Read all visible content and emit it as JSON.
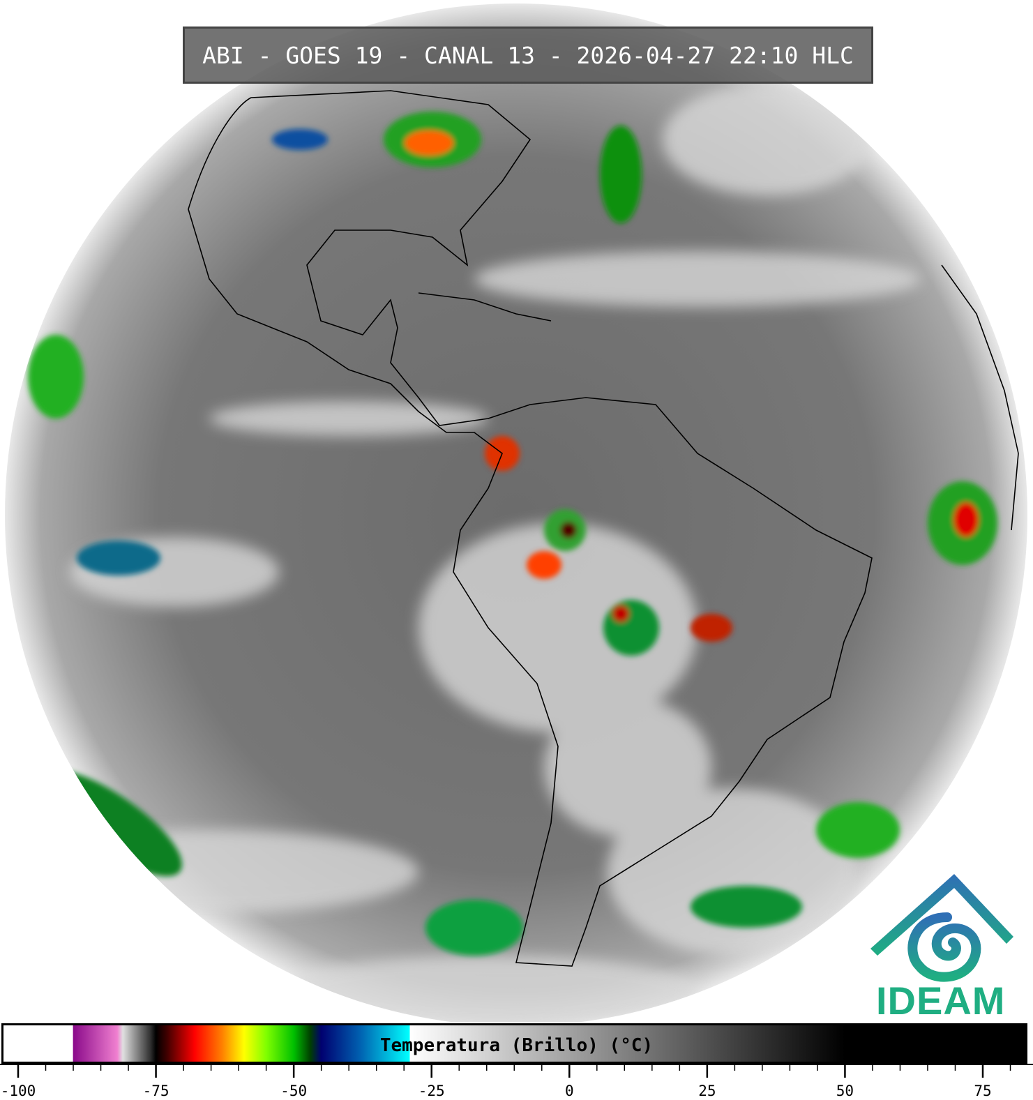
{
  "title": "ABI - GOES 19 - CANAL 13 - 2026-04-27 22:10 HLC",
  "logo": {
    "text": "IDEAM",
    "colors": [
      "#2f6fb5",
      "#1fae82"
    ]
  },
  "colorbar": {
    "label": "Temperatura (Brillo) (°C)",
    "range": [
      -100,
      85
    ],
    "major_ticks": [
      -100,
      -75,
      -50,
      -25,
      0,
      25,
      50,
      75
    ],
    "tick_labels": [
      "-100",
      "-75",
      "-50",
      "-25",
      "0",
      "25",
      "50",
      "75"
    ],
    "minor_step": 5,
    "stops": [
      {
        "t": -100,
        "color": "#ffffff"
      },
      {
        "t": -90.1,
        "color": "#ffffff"
      },
      {
        "t": -90,
        "color": "#8a0a8a"
      },
      {
        "t": -82,
        "color": "#f080d0"
      },
      {
        "t": -81,
        "color": "#e0e0e0"
      },
      {
        "t": -76,
        "color": "#303030"
      },
      {
        "t": -75,
        "color": "#000000"
      },
      {
        "t": -73,
        "color": "#400000"
      },
      {
        "t": -68,
        "color": "#ff0000"
      },
      {
        "t": -63,
        "color": "#ff8000"
      },
      {
        "t": -59,
        "color": "#ffff00"
      },
      {
        "t": -55,
        "color": "#80ff00"
      },
      {
        "t": -50,
        "color": "#00c000"
      },
      {
        "t": -47,
        "color": "#004000"
      },
      {
        "t": -45,
        "color": "#000070"
      },
      {
        "t": -38,
        "color": "#0060b0"
      },
      {
        "t": -29,
        "color": "#00ffff"
      },
      {
        "t": -28.9,
        "color": "#ffffff"
      },
      {
        "t": 50,
        "color": "#000000"
      },
      {
        "t": 85,
        "color": "#000000"
      }
    ]
  }
}
